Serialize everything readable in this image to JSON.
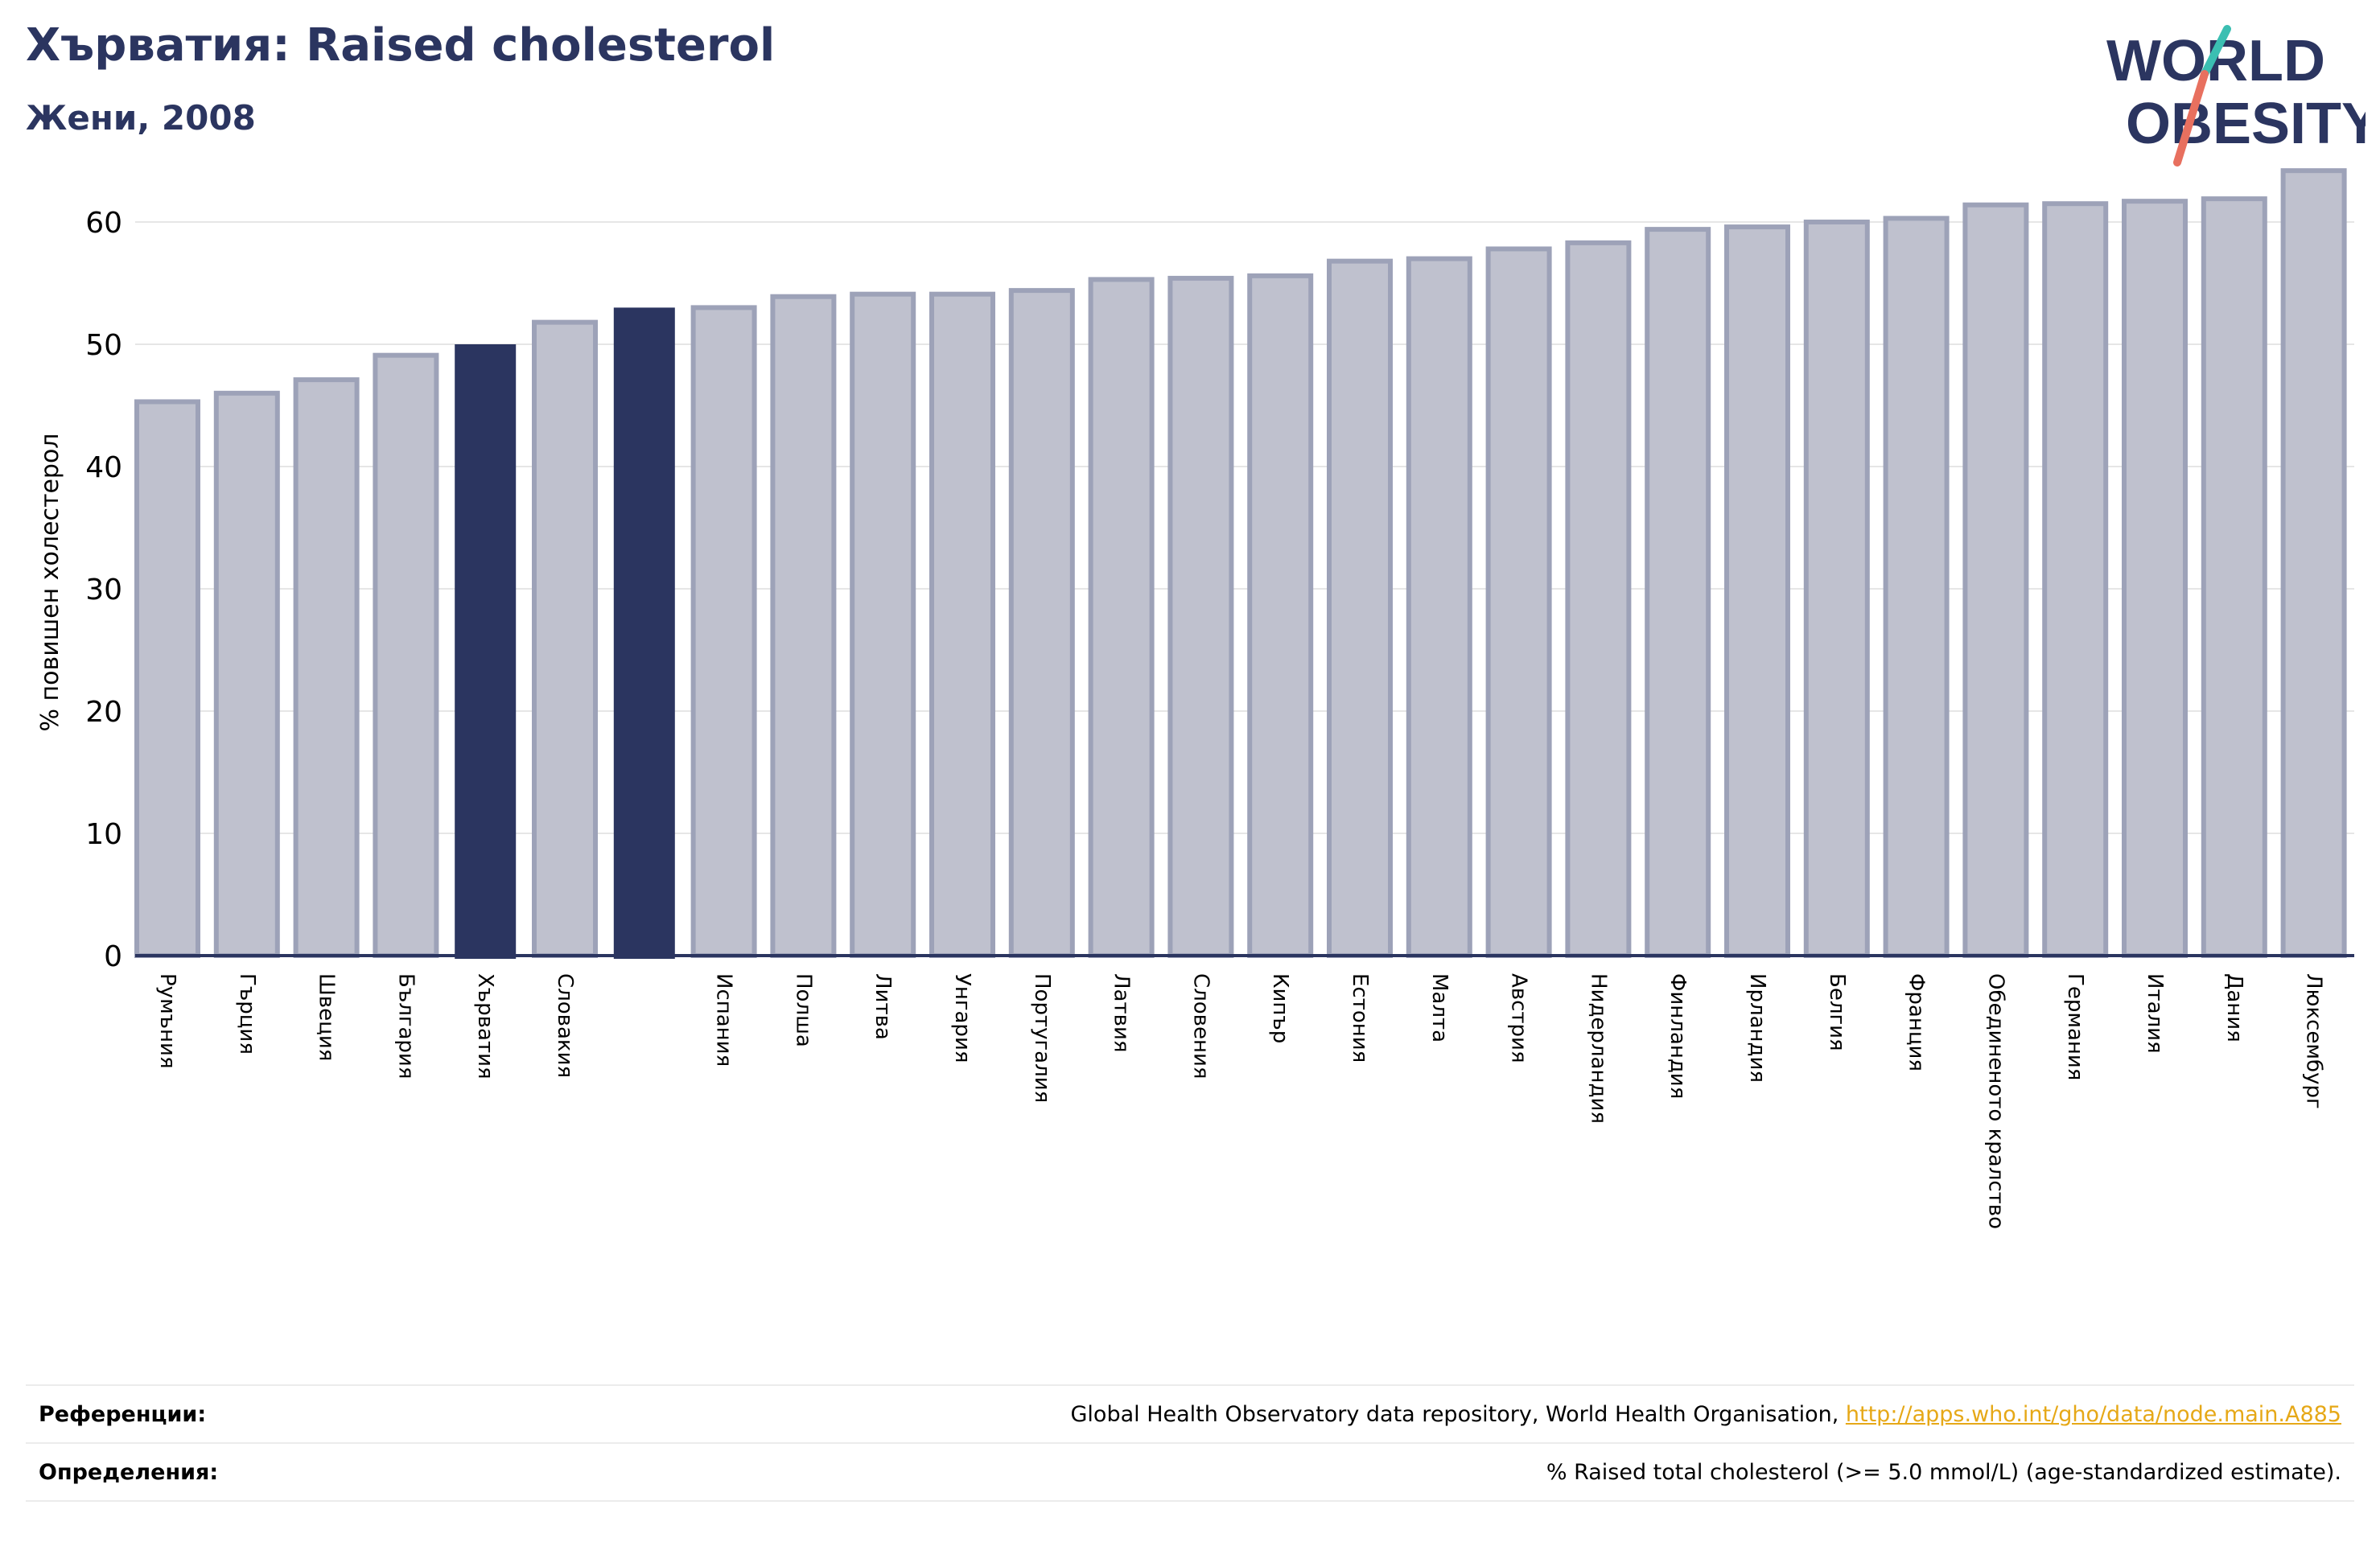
{
  "header": {
    "title": "Хърватия: Raised cholesterol",
    "subtitle": "Жени, 2008"
  },
  "logo": {
    "line1": "WORLD",
    "line2": "OBESITY",
    "colors": {
      "text": "#2b3560",
      "slash_teal": "#3bbfb2",
      "slash_coral": "#e8705f"
    }
  },
  "colors": {
    "highlight": "#2b3560",
    "bar_fill": "#bfc1ce",
    "bar_stroke": "#9da2b8",
    "grid": "#e6e6e6",
    "axis": "#2b3560"
  },
  "chart_data": {
    "type": "bar",
    "categories": [
      "Румъния",
      "Гърция",
      "Швеция",
      "България",
      "Хърватия",
      "Словакия",
      "",
      "Испания",
      "Полша",
      "Литва",
      "Унгария",
      "Португалия",
      "Латвия",
      "Словения",
      "Кипър",
      "Естония",
      "Малта",
      "Австрия",
      "Нидерландия",
      "Финландия",
      "Ирландия",
      "Белгия",
      "Франция",
      "Обединеното кралство",
      "Германия",
      "Италия",
      "Дания",
      "Люксембург"
    ],
    "values": [
      45.3,
      46.0,
      47.1,
      49.1,
      50.0,
      51.8,
      53.0,
      53.0,
      53.9,
      54.1,
      54.1,
      54.4,
      55.3,
      55.4,
      55.6,
      56.8,
      57.0,
      57.8,
      58.3,
      59.4,
      59.6,
      60.0,
      60.3,
      61.4,
      61.5,
      61.7,
      61.9,
      64.2
    ],
    "highlighted": [
      4,
      6
    ],
    "ylabel": "% повишен холестерол",
    "xlabel": "",
    "ylim": [
      0,
      65
    ],
    "yticks": [
      0,
      10,
      20,
      30,
      40,
      50,
      60
    ],
    "grid": true
  },
  "footer": {
    "references_label": "Референции:",
    "references_text": "Global Health Observatory data repository, World Health Organisation, ",
    "references_link": "http://apps.who.int/gho/data/node.main.A885",
    "definitions_label": "Определения:",
    "definitions_text": "% Raised total cholesterol (>= 5.0 mmol/L) (age-standardized estimate)."
  }
}
